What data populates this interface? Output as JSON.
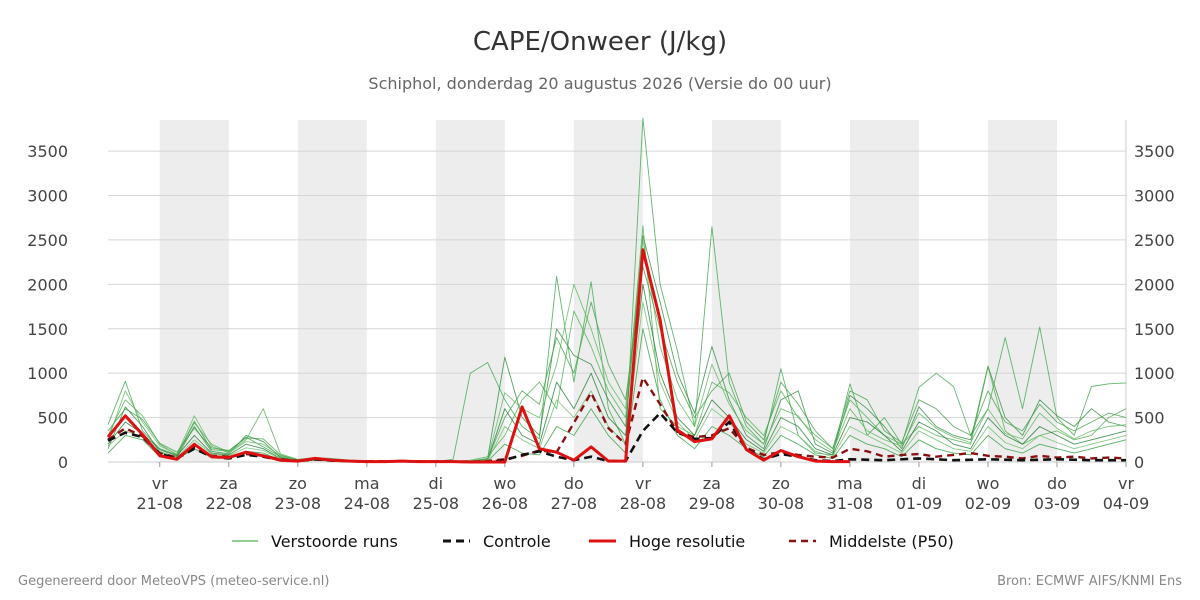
{
  "chart_data": {
    "type": "line",
    "title": "CAPE/Onweer (J/kg)",
    "subtitle": "Schiphol, donderdag 20 augustus 2026 (Versie do 00 uur)",
    "ylim": [
      0,
      3850
    ],
    "yticks": [
      0,
      500,
      1000,
      1500,
      2000,
      2500,
      3000,
      3500
    ],
    "xrange_days": [
      -0.75,
      14.0
    ],
    "x_unit": "days from 21-08 00:00 (x = 0 at 21-08, 1 at 22-08, …)",
    "shaded_days": [
      0,
      2,
      4,
      6,
      8,
      10,
      12
    ],
    "x_tick_labels": [
      {
        "day": "vr",
        "date": "21-08"
      },
      {
        "day": "za",
        "date": "22-08"
      },
      {
        "day": "zo",
        "date": "23-08"
      },
      {
        "day": "ma",
        "date": "24-08"
      },
      {
        "day": "di",
        "date": "25-08"
      },
      {
        "day": "wo",
        "date": "26-08"
      },
      {
        "day": "do",
        "date": "27-08"
      },
      {
        "day": "vr",
        "date": "28-08"
      },
      {
        "day": "za",
        "date": "29-08"
      },
      {
        "day": "zo",
        "date": "30-08"
      },
      {
        "day": "ma",
        "date": "31-08"
      },
      {
        "day": "di",
        "date": "01-09"
      },
      {
        "day": "wo",
        "date": "02-09"
      },
      {
        "day": "do",
        "date": "03-09"
      },
      {
        "day": "vr",
        "date": "04-09"
      }
    ],
    "series": [
      {
        "name": "Hoge resolutie",
        "color": "#dd1111",
        "style": "solid",
        "x": [
          -0.75,
          -0.5,
          -0.25,
          0,
          0.25,
          0.5,
          0.75,
          1,
          1.25,
          1.5,
          1.75,
          2,
          2.25,
          2.5,
          2.75,
          3,
          3.25,
          3.5,
          3.75,
          4,
          4.25,
          4.5,
          4.75,
          5,
          5.25,
          5.5,
          5.75,
          6,
          6.25,
          6.5,
          6.75,
          7,
          7.25,
          7.5,
          7.75,
          8,
          8.25,
          8.5,
          8.75,
          9,
          9.25,
          9.5,
          9.75,
          10
        ],
        "values": [
          280,
          520,
          310,
          70,
          30,
          200,
          60,
          50,
          110,
          70,
          20,
          10,
          40,
          20,
          10,
          5,
          5,
          10,
          5,
          5,
          5,
          0,
          0,
          0,
          620,
          150,
          110,
          20,
          170,
          10,
          10,
          2390,
          1600,
          360,
          230,
          260,
          520,
          140,
          20,
          130,
          60,
          10,
          5,
          5
        ]
      },
      {
        "name": "Controle",
        "color": "#111111",
        "style": "dashed",
        "x": [
          -0.75,
          -0.5,
          -0.25,
          0,
          0.25,
          0.5,
          0.75,
          1,
          1.25,
          1.5,
          1.75,
          2,
          2.25,
          2.5,
          2.75,
          3,
          3.25,
          3.5,
          3.75,
          4,
          4.25,
          4.5,
          4.75,
          5,
          5.25,
          5.5,
          5.75,
          6,
          6.25,
          6.5,
          6.75,
          7,
          7.25,
          7.5,
          7.75,
          8,
          8.25,
          8.5,
          8.75,
          9,
          9.25,
          9.5,
          9.75,
          10,
          10.5,
          11,
          11.5,
          12,
          12.5,
          13,
          13.5,
          14
        ],
        "values": [
          240,
          330,
          280,
          90,
          40,
          150,
          60,
          40,
          80,
          60,
          20,
          10,
          30,
          15,
          10,
          5,
          5,
          10,
          5,
          5,
          5,
          0,
          0,
          20,
          80,
          120,
          60,
          20,
          60,
          10,
          10,
          350,
          550,
          330,
          260,
          270,
          450,
          150,
          30,
          90,
          60,
          20,
          10,
          30,
          20,
          40,
          20,
          30,
          20,
          30,
          20,
          20
        ]
      },
      {
        "name": "Middelste (P50)",
        "color": "#8b1111",
        "style": "dashed",
        "x": [
          -0.75,
          -0.5,
          -0.25,
          0,
          0.25,
          0.5,
          0.75,
          1,
          1.25,
          1.5,
          1.75,
          2,
          2.25,
          2.5,
          2.75,
          3,
          3.25,
          3.5,
          3.75,
          4,
          4.25,
          4.5,
          4.75,
          5,
          5.25,
          5.5,
          5.75,
          6,
          6.25,
          6.5,
          6.75,
          7,
          7.25,
          7.5,
          7.75,
          8,
          8.25,
          8.5,
          8.75,
          9,
          9.25,
          9.5,
          9.75,
          10,
          10.25,
          10.5,
          10.75,
          11,
          11.25,
          11.5,
          11.75,
          12,
          12.25,
          12.5,
          12.75,
          13,
          13.25,
          13.5,
          13.75,
          14
        ],
        "values": [
          250,
          380,
          290,
          100,
          50,
          170,
          70,
          60,
          90,
          70,
          30,
          15,
          30,
          20,
          10,
          8,
          8,
          10,
          8,
          5,
          5,
          5,
          10,
          30,
          70,
          130,
          110,
          440,
          780,
          380,
          200,
          950,
          650,
          340,
          280,
          300,
          380,
          160,
          80,
          110,
          80,
          60,
          50,
          150,
          120,
          60,
          80,
          90,
          60,
          80,
          100,
          70,
          60,
          40,
          70,
          50,
          60,
          40,
          50,
          40
        ]
      },
      {
        "name": "Verstoorde runs",
        "color": "#2e9e3e",
        "style": "thin",
        "x": [
          -0.75,
          -0.5,
          -0.25,
          0,
          0.25,
          0.5,
          0.75,
          1,
          1.25,
          1.5,
          1.75,
          2,
          2.25,
          2.5,
          2.75,
          3,
          3.25,
          3.5,
          3.75,
          4,
          4.25,
          4.5,
          4.75,
          5,
          5.25,
          5.5,
          5.75,
          6,
          6.25,
          6.5,
          6.75,
          7,
          7.25,
          7.5,
          7.75,
          8,
          8.25,
          8.5,
          8.75,
          9,
          9.25,
          9.5,
          9.75,
          10,
          10.25,
          10.5,
          10.75,
          11,
          11.25,
          11.5,
          11.75,
          12,
          12.25,
          12.5,
          12.75,
          13,
          13.25,
          13.5,
          13.75,
          14
        ],
        "members": [
          [
            420,
            910,
            350,
            150,
            80,
            460,
            140,
            120,
            280,
            170,
            60,
            20,
            40,
            30,
            20,
            10,
            10,
            20,
            10,
            5,
            30,
            1000,
            1120,
            700,
            400,
            260,
            2090,
            900,
            2030,
            600,
            200,
            3870,
            2000,
            1250,
            400,
            2650,
            900,
            400,
            200,
            1050,
            300,
            100,
            80,
            880,
            300,
            500,
            200,
            840,
            1000,
            850,
            300,
            600,
            1400,
            600,
            1520,
            500,
            300,
            850,
            880,
            890
          ],
          [
            150,
            620,
            400,
            110,
            60,
            400,
            120,
            90,
            300,
            230,
            50,
            15,
            40,
            25,
            15,
            8,
            10,
            15,
            10,
            5,
            5,
            10,
            40,
            1180,
            500,
            300,
            1500,
            1200,
            1100,
            700,
            400,
            2550,
            1800,
            1000,
            550,
            1300,
            700,
            300,
            150,
            700,
            800,
            200,
            100,
            750,
            600,
            400,
            150,
            620,
            400,
            300,
            250,
            1080,
            500,
            300,
            700,
            520,
            400,
            600,
            450,
            400
          ],
          [
            300,
            700,
            520,
            200,
            80,
            440,
            200,
            110,
            250,
            600,
            90,
            30,
            50,
            40,
            20,
            10,
            10,
            20,
            10,
            5,
            5,
            20,
            60,
            300,
            700,
            900,
            600,
            1700,
            1300,
            800,
            500,
            2660,
            600,
            400,
            300,
            900,
            780,
            500,
            300,
            800,
            500,
            300,
            150,
            700,
            500,
            300,
            200,
            400,
            300,
            250,
            200,
            1070,
            350,
            200,
            300,
            350,
            250,
            300,
            500,
            600
          ],
          [
            200,
            450,
            320,
            140,
            70,
            300,
            100,
            80,
            200,
            150,
            40,
            10,
            30,
            20,
            10,
            5,
            5,
            10,
            5,
            5,
            5,
            10,
            20,
            600,
            300,
            200,
            900,
            600,
            1000,
            500,
            300,
            2000,
            1000,
            500,
            300,
            700,
            500,
            250,
            120,
            500,
            400,
            150,
            80,
            500,
            450,
            300,
            120,
            450,
            350,
            200,
            150,
            500,
            300,
            200,
            400,
            300,
            200,
            250,
            300,
            350
          ],
          [
            250,
            800,
            450,
            180,
            90,
            520,
            180,
            100,
            230,
            200,
            70,
            25,
            45,
            30,
            15,
            10,
            10,
            15,
            8,
            5,
            5,
            15,
            30,
            780,
            600,
            500,
            1100,
            2000,
            1500,
            900,
            600,
            2500,
            1300,
            700,
            400,
            1100,
            650,
            350,
            200,
            600,
            520,
            250,
            120,
            600,
            350,
            250,
            180,
            550,
            380,
            280,
            220,
            600,
            320,
            260,
            550,
            380,
            260,
            350,
            400,
            420
          ],
          [
            100,
            300,
            250,
            60,
            30,
            150,
            50,
            40,
            120,
            100,
            20,
            5,
            20,
            10,
            5,
            5,
            5,
            5,
            5,
            5,
            5,
            5,
            10,
            200,
            100,
            80,
            400,
            300,
            600,
            300,
            100,
            1500,
            700,
            300,
            150,
            400,
            300,
            150,
            60,
            300,
            200,
            80,
            40,
            300,
            200,
            150,
            60,
            250,
            150,
            100,
            80,
            300,
            150,
            100,
            200,
            150,
            100,
            150,
            200,
            250
          ],
          [
            350,
            600,
            480,
            210,
            110,
            380,
            160,
            130,
            270,
            260,
            80,
            20,
            35,
            25,
            15,
            10,
            8,
            12,
            8,
            5,
            5,
            10,
            30,
            500,
            800,
            650,
            1400,
            1000,
            1800,
            1100,
            700,
            2200,
            1500,
            900,
            500,
            800,
            1000,
            450,
            250,
            900,
            650,
            350,
            150,
            800,
            700,
            350,
            220,
            700,
            600,
            400,
            300,
            800,
            450,
            350,
            650,
            450,
            350,
            450,
            550,
            500
          ],
          [
            180,
            350,
            280,
            120,
            50,
            250,
            90,
            70,
            160,
            130,
            35,
            10,
            25,
            15,
            10,
            5,
            5,
            8,
            5,
            5,
            5,
            5,
            15,
            400,
            250,
            150,
            700,
            500,
            800,
            400,
            200,
            1800,
            900,
            450,
            250,
            600,
            450,
            200,
            100,
            400,
            300,
            120,
            60,
            400,
            300,
            200,
            100,
            350,
            250,
            150,
            120,
            400,
            220,
            150,
            300,
            220,
            150,
            200,
            250,
            300
          ]
        ]
      }
    ]
  },
  "legend": [
    {
      "label": "Verstoorde runs",
      "color": "#4caf50",
      "style": "thin"
    },
    {
      "label": "Controle",
      "color": "#111111",
      "style": "dashed"
    },
    {
      "label": "Hoge resolutie",
      "color": "#dd1111",
      "style": "solid"
    },
    {
      "label": "Middelste (P50)",
      "color": "#8b1111",
      "style": "dashed"
    }
  ],
  "footer": {
    "left": "Gegenereerd door MeteoVPS (meteo-service.nl)",
    "right": "Bron: ECMWF AIFS/KNMI Ens"
  }
}
